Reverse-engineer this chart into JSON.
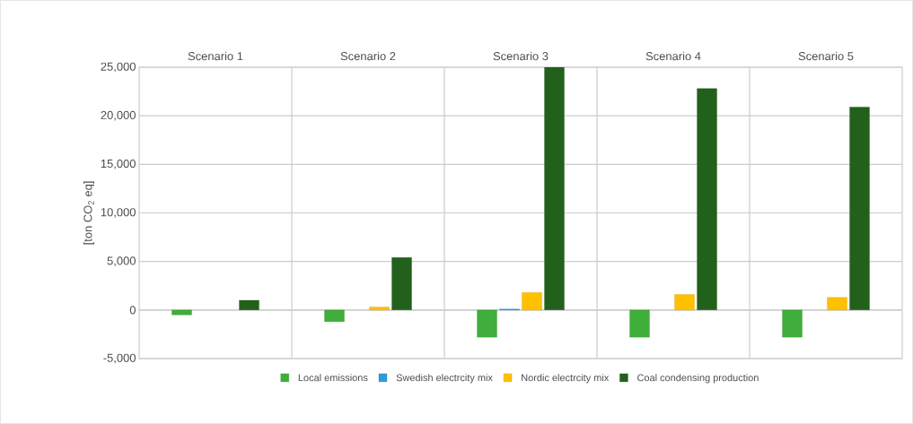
{
  "chart_data": {
    "type": "bar",
    "ylabel": "[ton CO$_{2}$ eq]",
    "categories": [
      "Scenario 1",
      "Scenario 2",
      "Scenario 3",
      "Scenario 4",
      "Scenario 5"
    ],
    "series": [
      {
        "name": "Local emissions",
        "color": "#3fae3a",
        "values": [
          -500,
          -1200,
          -2800,
          -2800,
          -2800
        ]
      },
      {
        "name": "Swedish electrcity mix",
        "color": "#2e9bd6",
        "values": [
          null,
          null,
          100,
          null,
          null
        ]
      },
      {
        "name": "Nordic electrcity mix",
        "color": "#ffc000",
        "values": [
          null,
          300,
          1800,
          1600,
          1300
        ]
      },
      {
        "name": "Coal condensing production",
        "color": "#22611c",
        "values": [
          1000,
          5400,
          25000,
          22800,
          20900
        ]
      }
    ],
    "ylim": [
      -5000,
      25000
    ],
    "yticks": [
      {
        "value": -5000,
        "label": "-5,000"
      },
      0,
      {
        "value": 5000,
        "label": "5,000"
      },
      {
        "value": 10000,
        "label": "10,000"
      },
      {
        "value": 15000,
        "label": "15,000"
      },
      {
        "value": 20000,
        "label": "20,000"
      },
      {
        "value": 25000,
        "label": "25,000"
      }
    ],
    "grid": "y",
    "legend": "bottom"
  }
}
